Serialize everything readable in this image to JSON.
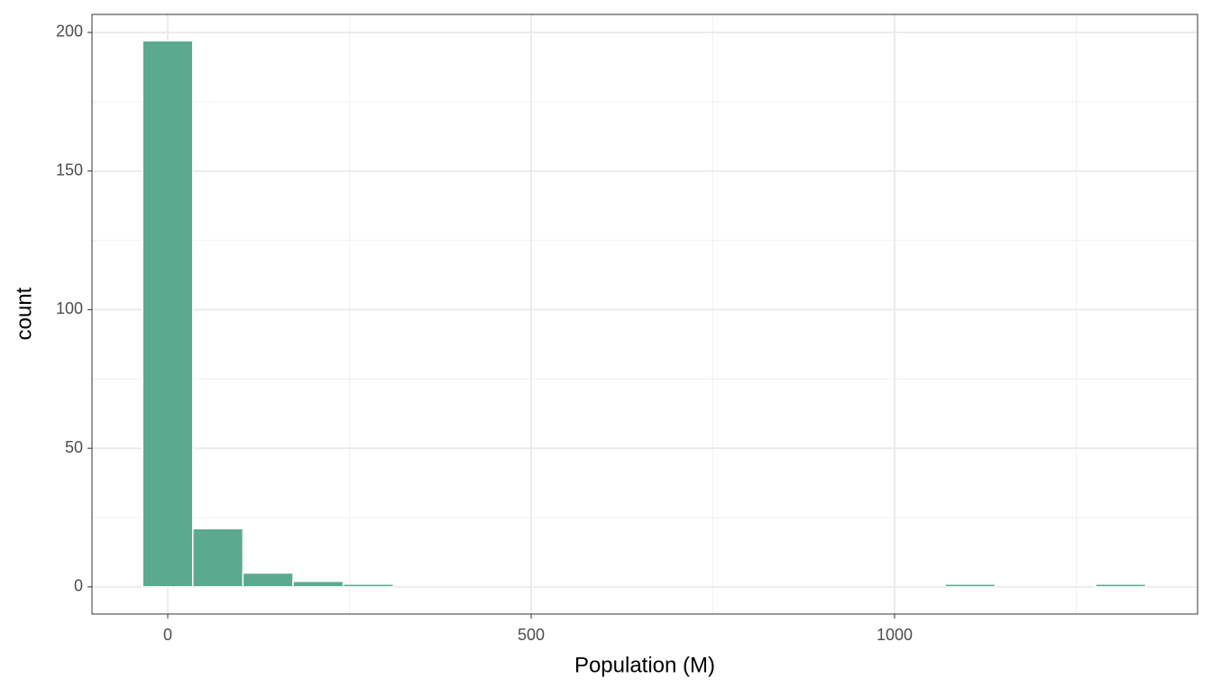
{
  "chart_data": {
    "type": "histogram",
    "x_label": "Population (M)",
    "y_label": "count",
    "bins": [
      -34.5,
      34.5,
      103.5,
      172.5,
      241.5,
      310.5,
      379.5,
      448.5,
      517.5,
      586.5,
      655.5,
      724.5,
      793.5,
      862.5,
      931.5,
      1000.5,
      1069.5,
      1138.5,
      1207.5,
      1276.5,
      1345.5
    ],
    "values": [
      197,
      21,
      5,
      2,
      1,
      0,
      0,
      0,
      0,
      0,
      0,
      0,
      0,
      0,
      0,
      0,
      1,
      0,
      0,
      1
    ],
    "color": "#5aaa8f",
    "xlim": [
      -104.2,
      1416.9
    ],
    "xticks": [
      0,
      500,
      1000
    ],
    "xminor": [
      250,
      750,
      1250
    ],
    "ylim": [
      -9.8,
      206.5
    ],
    "yticks": [
      0,
      50,
      100,
      150,
      200
    ],
    "yminor": [
      25,
      75,
      125,
      175
    ],
    "grid": true
  }
}
